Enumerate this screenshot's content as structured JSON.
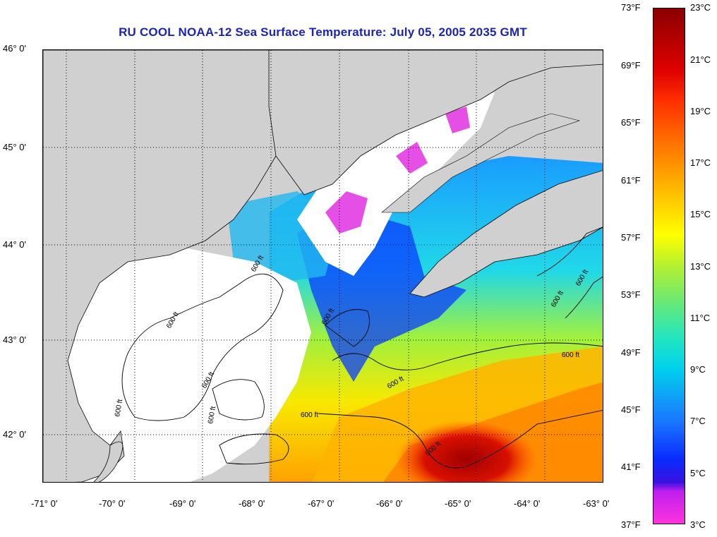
{
  "title": "RU COOL  NOAA-12  Sea Surface Temperature:  July 05, 2005 2035 GMT",
  "map": {
    "latitude_labels": [
      "46° 0'",
      "45° 0'",
      "44° 0'",
      "43° 0'",
      "42° 0'"
    ],
    "longitude_labels": [
      "-71° 0'",
      "-70° 0'",
      "-69° 0'",
      "-68° 0'",
      "-67° 0'",
      "-66° 0'",
      "-65° 0'",
      "-64° 0'",
      "-63° 0'"
    ],
    "contour_label": "600 ft",
    "land_color": "#d0d0d0",
    "cloud_color": "#ffffff",
    "gridlines": "dotted"
  },
  "colorbar": {
    "fahrenheit_labels": [
      "73°F",
      "69°F",
      "65°F",
      "61°F",
      "57°F",
      "53°F",
      "49°F",
      "45°F",
      "41°F",
      "37°F"
    ],
    "celsius_labels": [
      "23°C",
      "21°C",
      "19°C",
      "17°C",
      "15°C",
      "13°C",
      "11°C",
      "9°C",
      "7°C",
      "5°C",
      "3°C"
    ],
    "min_c": 3,
    "max_c": 23,
    "min_f": 37,
    "max_f": 73
  }
}
